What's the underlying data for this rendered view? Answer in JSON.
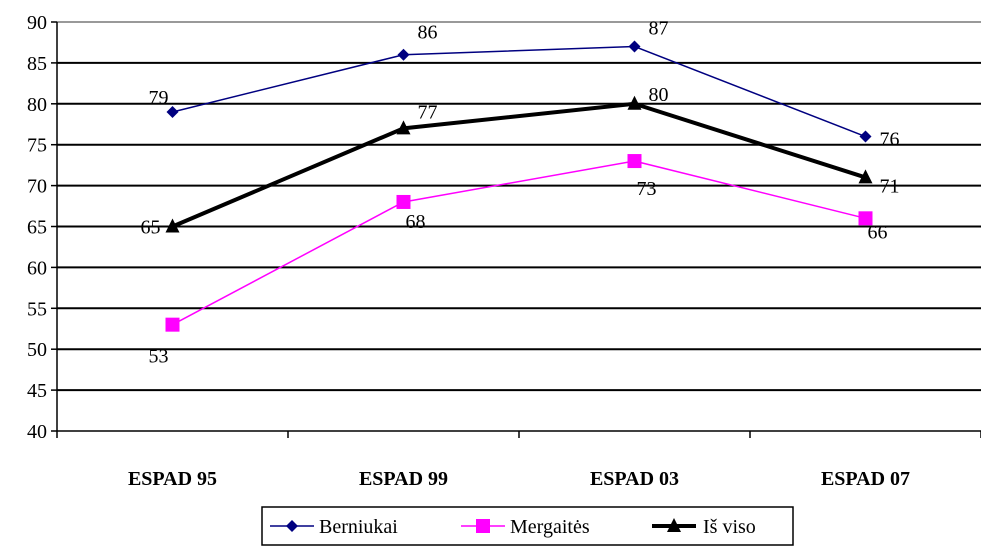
{
  "chart_data": {
    "type": "line",
    "categories": [
      "ESPAD 95",
      "ESPAD 99",
      "ESPAD 03",
      "ESPAD 07"
    ],
    "series": [
      {
        "name": "Berniukai",
        "values": [
          79,
          86,
          87,
          76
        ],
        "color": "#000080",
        "marker": "diamond"
      },
      {
        "name": "Mergaitės",
        "values": [
          53,
          68,
          73,
          66
        ],
        "color": "#ff00ff",
        "marker": "square"
      },
      {
        "name": "Iš viso",
        "values": [
          65,
          77,
          80,
          71
        ],
        "color": "#000000",
        "marker": "triangle"
      }
    ],
    "yticks": [
      "40",
      "45",
      "50",
      "55",
      "60",
      "65",
      "70",
      "75",
      "80",
      "85",
      "90"
    ],
    "ylim": [
      40,
      90
    ],
    "title": "",
    "xlabel": "",
    "ylabel": "",
    "grid": true,
    "legend": "bottom"
  }
}
